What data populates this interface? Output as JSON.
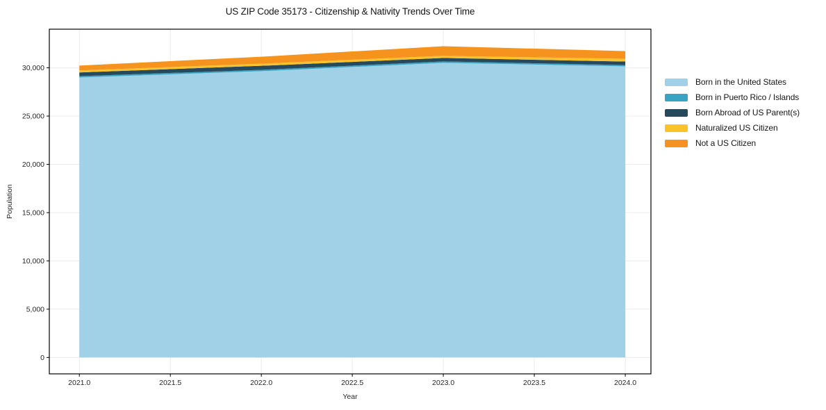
{
  "title": "US ZIP Code 35173 - Citizenship & Nativity Trends Over Time",
  "chart_data": {
    "type": "area",
    "stacked": true,
    "title": "US ZIP Code 35173 - Citizenship & Nativity Trends Over Time",
    "xlabel": "Year",
    "ylabel": "Population",
    "x": [
      2021,
      2022,
      2023,
      2024
    ],
    "series": [
      {
        "name": "Born in the United States",
        "color": "#A1D1E7",
        "values": [
          29000,
          29650,
          30520,
          30150
        ]
      },
      {
        "name": "Born in Puerto Rico / Islands",
        "color": "#38A3C3",
        "values": [
          140,
          140,
          140,
          140
        ]
      },
      {
        "name": "Born Abroad of US Parent(s)",
        "color": "#26495C",
        "values": [
          380,
          420,
          360,
          360
        ]
      },
      {
        "name": "Naturalized US Citizen",
        "color": "#FCC22C",
        "values": [
          210,
          220,
          220,
          290
        ]
      },
      {
        "name": "Not a US Citizen",
        "color": "#F6931E",
        "values": [
          500,
          720,
          1000,
          790
        ]
      }
    ],
    "totals": [
      30230,
      31150,
      32240,
      31730
    ],
    "xlim": [
      2020.835,
      2024.141
    ],
    "ylim": [
      -1700,
      34000
    ],
    "x_ticks": [
      2021.0,
      2021.5,
      2022.0,
      2022.5,
      2023.0,
      2023.5,
      2024.0
    ],
    "x_tick_labels": [
      "2021.0",
      "2021.5",
      "2022.0",
      "2022.5",
      "2023.0",
      "2023.5",
      "2024.0"
    ],
    "y_ticks": [
      0,
      5000,
      10000,
      15000,
      20000,
      25000,
      30000
    ],
    "y_tick_labels": [
      "0",
      "5,000",
      "10,000",
      "15,000",
      "20,000",
      "25,000",
      "30,000"
    ],
    "grid": true,
    "legend_position": "right"
  },
  "colors": {
    "grid": "#ECECEC",
    "spine": "#000000",
    "tick_text": "#262626",
    "background": "#FFFFFF"
  }
}
